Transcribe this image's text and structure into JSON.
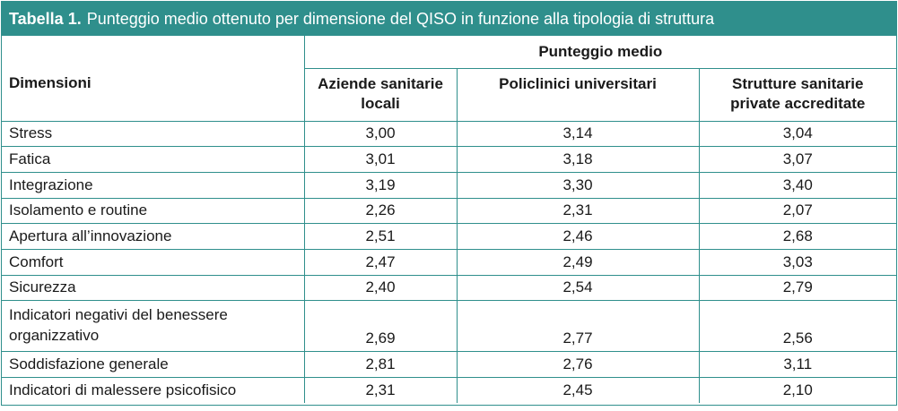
{
  "table": {
    "label": "Tabella 1.",
    "caption": "Punteggio medio ottenuto per dimensione del QISO in funzione alla tipologia di struttura",
    "group_header": "Punteggio medio",
    "headers": [
      "Dimensioni",
      "Aziende sanitarie locali",
      "Policlinici universitari",
      "Strutture sanitarie private accreditate"
    ],
    "rows": [
      {
        "dimension": "Stress",
        "values": [
          "3,00",
          "3,14",
          "3,04"
        ]
      },
      {
        "dimension": "Fatica",
        "values": [
          "3,01",
          "3,18",
          "3,07"
        ]
      },
      {
        "dimension": "Integrazione",
        "values": [
          "3,19",
          "3,30",
          "3,40"
        ]
      },
      {
        "dimension": "Isolamento e routine",
        "values": [
          "2,26",
          "2,31",
          "2,07"
        ]
      },
      {
        "dimension": "Apertura all’innovazione",
        "values": [
          "2,51",
          "2,46",
          "2,68"
        ]
      },
      {
        "dimension": "Comfort",
        "values": [
          "2,47",
          "2,49",
          "3,03"
        ]
      },
      {
        "dimension": "Sicurezza",
        "values": [
          "2,40",
          "2,54",
          "2,79"
        ]
      },
      {
        "dimension": "Indicatori negativi del benessere organizzativo",
        "values": [
          "2,69",
          "2,77",
          "2,56"
        ]
      },
      {
        "dimension": "Soddisfazione generale",
        "values": [
          "2,81",
          "2,76",
          "3,11"
        ]
      },
      {
        "dimension": "Indicatori di malessere psicofisico",
        "values": [
          "2,31",
          "2,45",
          "2,10"
        ]
      }
    ]
  }
}
